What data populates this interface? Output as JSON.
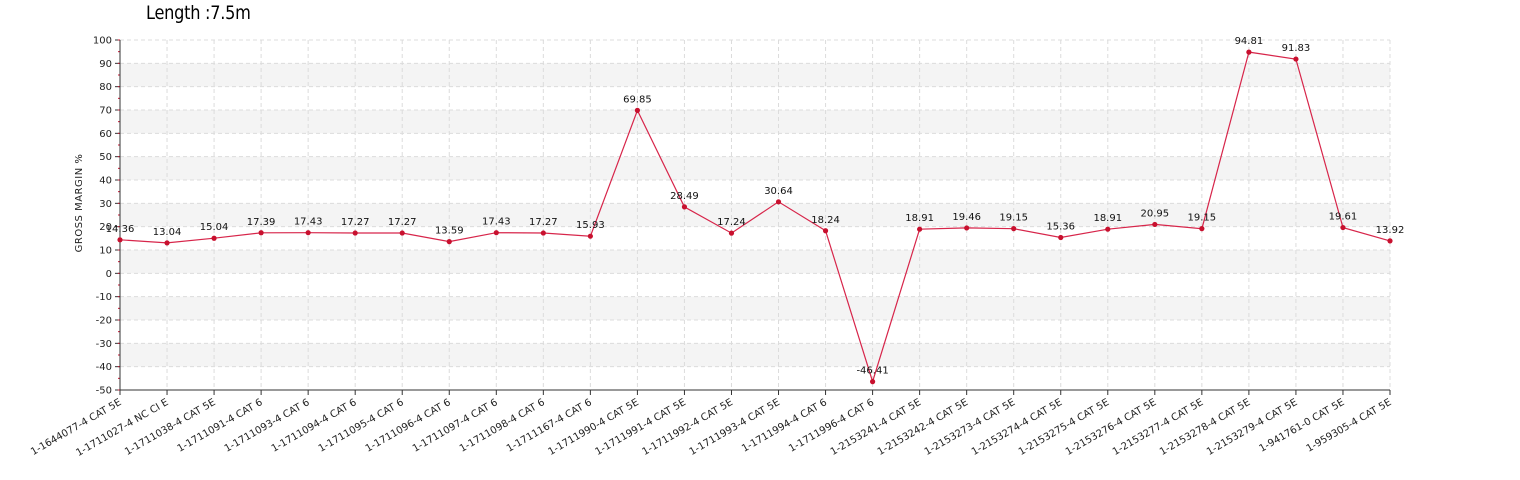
{
  "chart_data": {
    "type": "line",
    "title": "Length :7.5m",
    "xlabel": "",
    "ylabel": "GROSS MARGIN %",
    "ylim": [
      -50,
      100
    ],
    "ytick_step": 10,
    "grid": true,
    "colors": {
      "line": "#d7254a",
      "point": "#c8102e",
      "band": "#f4f4f4",
      "grid": "#dcdcdc"
    },
    "categories": [
      "1-1644077-4 CAT 5E",
      "1-1711027-4 NC CI E",
      "1-1711038-4 CAT 5E",
      "1-1711091-4 CAT 6",
      "1-1711093-4 CAT 6",
      "1-1711094-4 CAT 6",
      "1-1711095-4 CAT 6",
      "1-1711096-4 CAT 6",
      "1-1711097-4 CAT 6",
      "1-1711098-4 CAT 6",
      "1-1711167-4 CAT 6",
      "1-1711990-4 CAT 5E",
      "1-1711991-4 CAT 5E",
      "1-1711992-4 CAT 5E",
      "1-1711993-4 CAT 5E",
      "1-1711994-4 CAT 6",
      "1-1711996-4 CAT 6",
      "1-2153241-4 CAT 5E",
      "1-2153242-4 CAT 5E",
      "1-2153273-4 CAT 5E",
      "1-2153274-4 CAT 5E",
      "1-2153275-4 CAT 5E",
      "1-2153276-4 CAT 5E",
      "1-2153277-4 CAT 5E",
      "1-2153278-4 CAT 5E",
      "1-2153279-4 CAT 5E",
      "1-941761-0 CAT 5E",
      "1-959305-4 CAT 5E"
    ],
    "series": [
      {
        "values": [
          14.36,
          13.04,
          15.04,
          17.39,
          17.43,
          17.27,
          17.27,
          13.59,
          17.43,
          17.27,
          15.93,
          69.85,
          28.49,
          17.24,
          30.64,
          18.24,
          -46.41,
          18.91,
          19.46,
          19.15,
          15.36,
          18.91,
          20.95,
          19.15,
          94.81,
          91.83,
          19.61,
          13.92
        ],
        "labels": [
          "14.36",
          "13.04",
          "15.04",
          "17.39",
          "17.43",
          "17.27",
          "17.27",
          "13.59",
          "17.43",
          "17.27",
          "15.93",
          "69.85",
          "28.49",
          "17.24",
          "30.64",
          "18.24",
          "-46.41",
          "18.91",
          "19.46",
          "19.15",
          "15.36",
          "18.91",
          "20.95",
          "19.15",
          "94.81",
          "91.83",
          "19.61",
          "13.92"
        ]
      }
    ]
  }
}
